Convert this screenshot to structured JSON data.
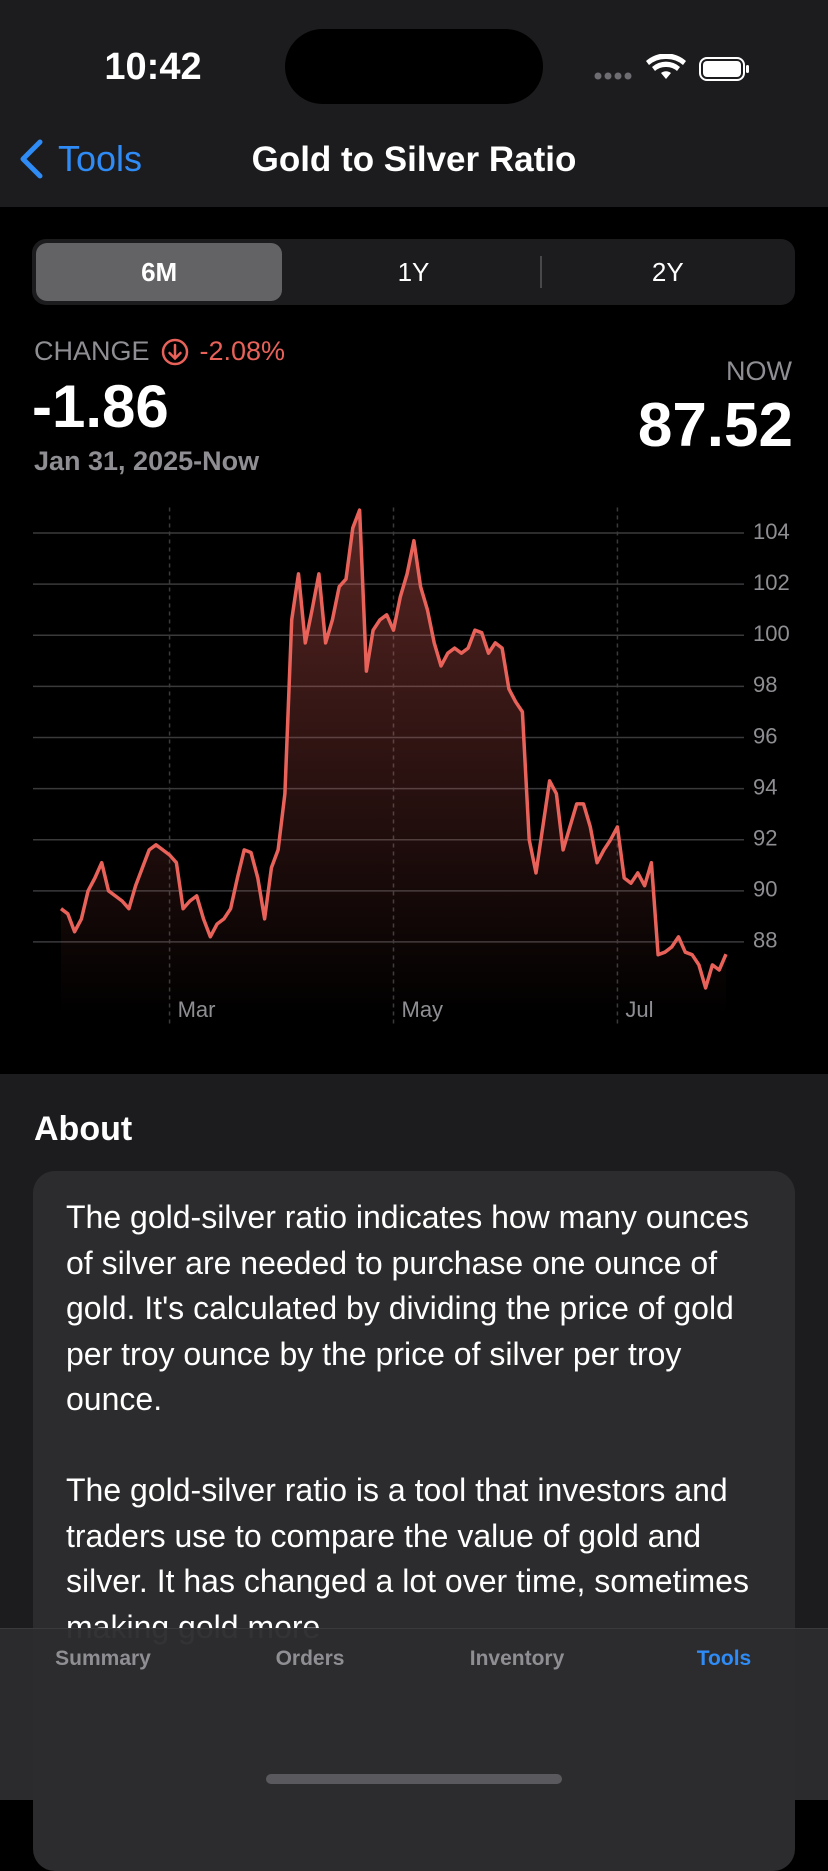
{
  "status_bar": {
    "time": "10:42"
  },
  "nav": {
    "back": "Tools",
    "title": "Gold to Silver Ratio"
  },
  "range_picker": {
    "options": [
      "6M",
      "1Y",
      "2Y"
    ],
    "selected": 0
  },
  "summary": {
    "change_label": "CHANGE",
    "change_percent": "-2.08%",
    "change": "-1.86",
    "period": "Jan 31, 2025-Now",
    "now_label": "NOW",
    "now": "87.52"
  },
  "chart_data": {
    "type": "line",
    "color": "#e8625a",
    "categories": [
      null,
      null,
      null,
      null,
      null,
      null,
      null,
      null,
      null,
      null,
      null,
      null,
      null,
      null,
      null,
      null,
      "Mar",
      null,
      null,
      null,
      null,
      null,
      null,
      null,
      null,
      null,
      null,
      null,
      null,
      null,
      null,
      null,
      null,
      null,
      null,
      null,
      null,
      null,
      null,
      null,
      null,
      null,
      null,
      null,
      null,
      null,
      null,
      null,
      null,
      "May",
      null,
      null,
      null,
      null,
      null,
      null,
      null,
      null,
      null,
      null,
      null,
      null,
      null,
      null,
      null,
      null,
      null,
      null,
      null,
      null,
      null,
      null,
      null,
      null,
      null,
      null,
      null,
      null,
      null,
      null,
      null,
      null,
      "Jul",
      null,
      null,
      null,
      null,
      null,
      null,
      null,
      null,
      null,
      null,
      null,
      null,
      null,
      null,
      null,
      null
    ],
    "values": [
      89.3,
      89.1,
      88.4,
      88.9,
      90.0,
      90.5,
      91.1,
      90.0,
      89.8,
      89.6,
      89.3,
      90.2,
      90.9,
      91.6,
      91.8,
      91.6,
      91.4,
      91.1,
      89.3,
      89.6,
      89.8,
      88.9,
      88.2,
      88.7,
      88.9,
      89.3,
      90.5,
      91.6,
      91.5,
      90.5,
      88.9,
      90.9,
      91.6,
      93.8,
      100.6,
      102.4,
      99.7,
      101.0,
      102.4,
      99.7,
      100.6,
      101.9,
      102.2,
      104.2,
      104.9,
      98.6,
      100.2,
      100.6,
      100.8,
      100.2,
      101.5,
      102.4,
      103.7,
      101.9,
      101.0,
      99.7,
      98.8,
      99.3,
      99.5,
      99.3,
      99.5,
      100.2,
      100.1,
      99.3,
      99.7,
      99.5,
      97.9,
      97.4,
      97.0,
      92.0,
      90.7,
      92.5,
      94.3,
      93.8,
      91.6,
      92.5,
      93.4,
      93.4,
      92.5,
      91.1,
      91.6,
      92.0,
      92.5,
      90.5,
      90.3,
      90.7,
      90.2,
      91.1,
      87.5,
      87.6,
      87.8,
      88.2,
      87.6,
      87.5,
      87.1,
      86.2,
      87.1,
      86.9,
      87.52
    ],
    "ylim": [
      85,
      105
    ],
    "yticks": [
      88,
      90,
      92,
      94,
      96,
      98,
      100,
      102,
      104
    ],
    "grid": true
  },
  "about": {
    "title": "About",
    "paragraphs": [
      "The gold-silver ratio indicates how many ounces of silver are needed to purchase one ounce of gold. It's calculated by dividing the price of gold per troy ounce by the price of silver per troy ounce.",
      "The gold-silver ratio is a tool that investors and traders use to compare the value of gold and silver. It has changed a lot over time, sometimes making gold more"
    ]
  },
  "tab_bar": {
    "tabs": [
      "Summary",
      "Orders",
      "Inventory",
      "Tools"
    ],
    "selected": 3
  }
}
